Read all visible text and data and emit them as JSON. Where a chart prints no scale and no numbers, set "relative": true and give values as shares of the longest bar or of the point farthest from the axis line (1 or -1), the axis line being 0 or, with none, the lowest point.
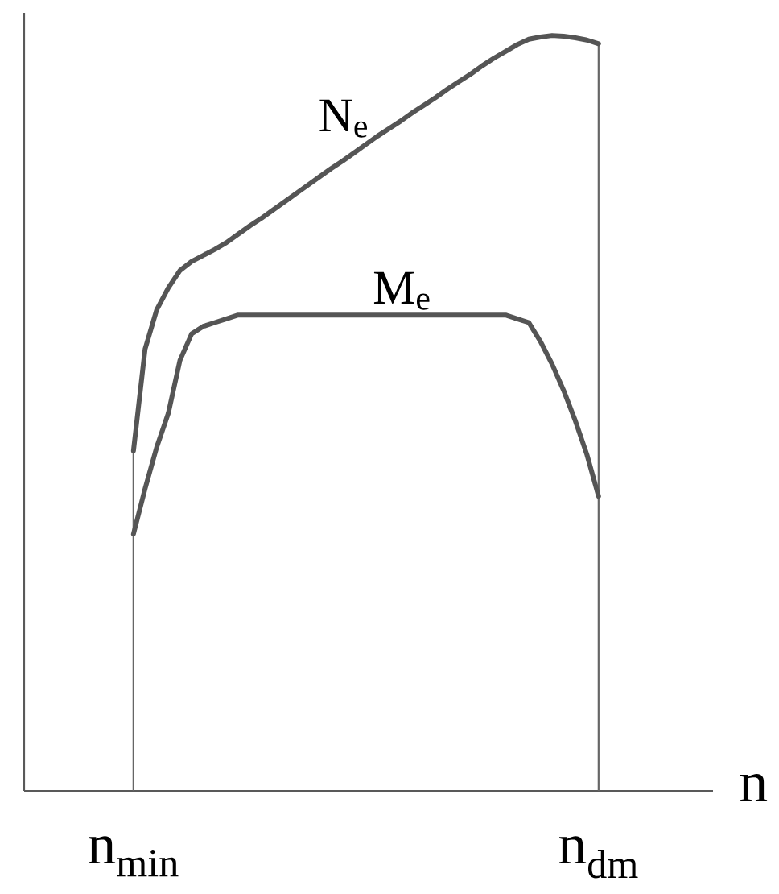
{
  "chart_data": {
    "type": "line",
    "relative": true,
    "xlabel": "n",
    "categories": [
      "n$_{min}$",
      null,
      null,
      null,
      null,
      null,
      null,
      null,
      null,
      null,
      null,
      null,
      null,
      null,
      null,
      null,
      null,
      null,
      null,
      null,
      null,
      null,
      null,
      null,
      null,
      null,
      null,
      null,
      null,
      null,
      null,
      null,
      null,
      null,
      null,
      null,
      null,
      null,
      null,
      null,
      "n$_{dm}$"
    ],
    "tick_labels": "x",
    "series": [
      {
        "name": "N$_{e}$",
        "color": "#555555",
        "values": [
          0.45,
          0.585,
          0.637,
          0.666,
          0.689,
          0.701,
          0.709,
          0.717,
          0.726,
          0.737,
          0.748,
          0.758,
          0.769,
          0.78,
          0.791,
          0.802,
          0.813,
          0.824,
          0.834,
          0.845,
          0.856,
          0.867,
          0.877,
          0.887,
          0.898,
          0.908,
          0.918,
          0.929,
          0.939,
          0.949,
          0.96,
          0.97,
          0.979,
          0.988,
          0.995,
          0.998,
          1,
          0.999,
          0.997,
          0.994,
          0.989
        ]
      },
      {
        "name": "M$_{e}$",
        "color": "#555555",
        "values": [
          0.34,
          0.4,
          0.455,
          0.5,
          0.57,
          0.605,
          0.615,
          0.62,
          0.625,
          0.63,
          0.63,
          0.63,
          0.63,
          0.63,
          0.63,
          0.63,
          0.63,
          0.63,
          0.63,
          0.63,
          0.63,
          0.63,
          0.63,
          0.63,
          0.63,
          0.63,
          0.63,
          0.63,
          0.63,
          0.63,
          0.63,
          0.63,
          0.63,
          0.625,
          0.62,
          0.595,
          0.565,
          0.53,
          0.49,
          0.445,
          0.39
        ]
      }
    ],
    "ref_lines": [
      {
        "axis": "x",
        "value": "n$_{min}$",
        "color": "#666666"
      },
      {
        "axis": "x",
        "value": "n$_{dm}$",
        "color": "#666666"
      }
    ]
  }
}
